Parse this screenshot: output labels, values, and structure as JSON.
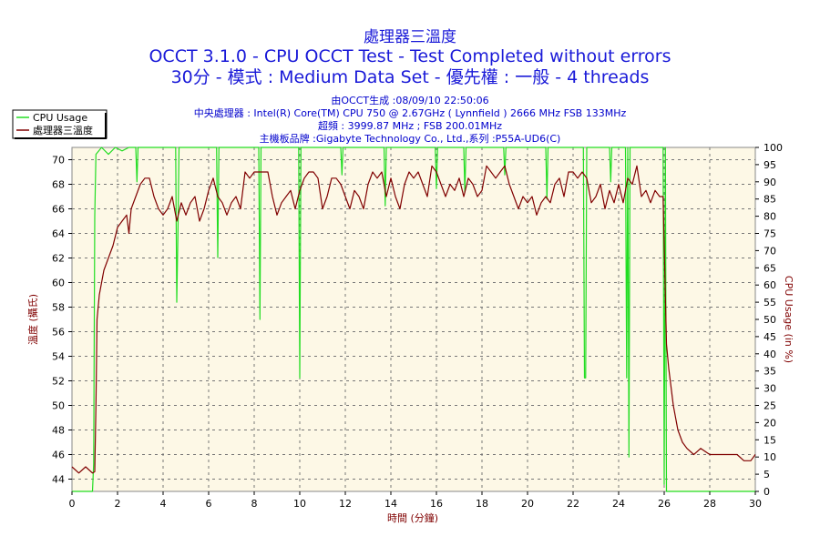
{
  "header": {
    "title_line1": "處理器三溫度",
    "title_line2": "OCCT 3.1.0 - CPU OCCT Test - Test Completed without errors",
    "title_line3": "30分 - 模式 : Medium Data Set - 優先權 : 一般 - 4 threads"
  },
  "info": {
    "generated": "由OCCT生成 :08/09/10 22:50:06",
    "cpu": "中央處理器 : Intel(R) Core(TM) CPU 750 @ 2.67GHz ( Lynnfield ) 2666 MHz FSB 133MHz",
    "overclock": "超頻 : 3999.87 MHz ; FSB 200.01MHz",
    "motherboard": "主機板品牌 :Gigabyte Technology Co., Ltd.,系列 :P55A-UD6(C)"
  },
  "colors": {
    "plot_bg": "#fdf8e6",
    "usage_line": "#22dd22",
    "temp_line": "#800000",
    "grid": "#777777",
    "title": "#1a1ad8",
    "info": "#0000cc"
  },
  "chart_data": {
    "type": "line",
    "xlabel": "時間 (分鐘)",
    "ylabel_left": "溫度 (攝氏)",
    "ylabel_right": "CPU Usage (in %)",
    "xlim": [
      0,
      30
    ],
    "ylim_left": [
      43,
      71
    ],
    "ylim_right": [
      0,
      100
    ],
    "x_ticks": [
      "0",
      "2",
      "4",
      "6",
      "8",
      "10",
      "12",
      "14",
      "16",
      "18",
      "20",
      "22",
      "24",
      "26",
      "28",
      "30"
    ],
    "left_ticks": [
      "44",
      "46",
      "48",
      "50",
      "52",
      "54",
      "56",
      "58",
      "60",
      "62",
      "64",
      "66",
      "68",
      "70"
    ],
    "right_ticks": [
      "0",
      "5",
      "10",
      "15",
      "20",
      "25",
      "30",
      "35",
      "40",
      "45",
      "50",
      "55",
      "60",
      "65",
      "70",
      "75",
      "80",
      "85",
      "90",
      "95",
      "100"
    ],
    "grid": true,
    "legend_position": "top-left",
    "series": [
      {
        "name": "CPU Usage",
        "axis": "right",
        "color": "#22dd22",
        "x": [
          0,
          0.9,
          0.95,
          1.0,
          1.05,
          1.3,
          1.6,
          1.9,
          2.2,
          2.5,
          2.8,
          2.85,
          2.9,
          3.2,
          4.0,
          4.55,
          4.6,
          4.65,
          4.7,
          4.75,
          5.5,
          6.35,
          6.4,
          6.45,
          6.5,
          7.0,
          7.5,
          8.2,
          8.25,
          8.3,
          8.35,
          8.4,
          9.0,
          9.6,
          9.95,
          10.0,
          10.05,
          10.1,
          11.0,
          11.8,
          11.85,
          11.9,
          12.5,
          13.0,
          13.7,
          13.75,
          13.8,
          14.5,
          15.0,
          15.5,
          15.95,
          16.0,
          16.05,
          16.5,
          17.2,
          17.25,
          17.3,
          18.0,
          18.5,
          18.95,
          19.0,
          19.05,
          20.0,
          20.8,
          20.85,
          20.9,
          21.5,
          22.2,
          22.45,
          22.5,
          22.55,
          22.6,
          23.0,
          23.6,
          23.65,
          23.7,
          24.3,
          24.35,
          24.4,
          24.45,
          24.5,
          24.55,
          24.6,
          25.0,
          25.5,
          25.95,
          26.0,
          26.05,
          26.1,
          27.0,
          28.0,
          29.0,
          30.0
        ],
        "y": [
          0,
          0,
          8,
          80,
          98,
          100,
          98,
          100,
          99,
          100,
          100,
          90,
          100,
          100,
          100,
          100,
          55,
          75,
          100,
          100,
          100,
          100,
          68,
          100,
          100,
          100,
          100,
          100,
          50,
          100,
          100,
          100,
          100,
          100,
          100,
          33,
          100,
          100,
          100,
          100,
          92,
          100,
          100,
          100,
          100,
          83,
          100,
          100,
          100,
          100,
          100,
          88,
          100,
          100,
          100,
          87,
          100,
          100,
          100,
          100,
          92,
          100,
          100,
          100,
          85,
          100,
          100,
          100,
          100,
          33,
          33,
          100,
          100,
          100,
          90,
          100,
          100,
          33,
          100,
          10,
          100,
          100,
          100,
          100,
          100,
          100,
          2,
          100,
          0,
          0,
          0,
          0,
          0
        ]
      },
      {
        "name": "處理器三溫度",
        "axis": "left",
        "color": "#800000",
        "x": [
          0,
          0.3,
          0.6,
          0.9,
          1.0,
          1.05,
          1.1,
          1.2,
          1.4,
          1.6,
          1.8,
          2.0,
          2.2,
          2.4,
          2.5,
          2.6,
          2.8,
          3.0,
          3.2,
          3.4,
          3.6,
          3.8,
          4.0,
          4.2,
          4.4,
          4.6,
          4.8,
          5.0,
          5.2,
          5.4,
          5.6,
          5.8,
          6.0,
          6.2,
          6.4,
          6.6,
          6.8,
          7.0,
          7.2,
          7.4,
          7.6,
          7.8,
          8.0,
          8.2,
          8.4,
          8.6,
          8.8,
          9.0,
          9.2,
          9.4,
          9.6,
          9.8,
          10.0,
          10.2,
          10.4,
          10.6,
          10.8,
          11.0,
          11.2,
          11.4,
          11.6,
          11.8,
          12.0,
          12.2,
          12.4,
          12.6,
          12.8,
          13.0,
          13.2,
          13.4,
          13.6,
          13.8,
          14.0,
          14.2,
          14.4,
          14.6,
          14.8,
          15.0,
          15.2,
          15.4,
          15.6,
          15.8,
          16.0,
          16.2,
          16.4,
          16.6,
          16.8,
          17.0,
          17.2,
          17.4,
          17.6,
          17.8,
          18.0,
          18.2,
          18.4,
          18.6,
          18.8,
          19.0,
          19.2,
          19.4,
          19.6,
          19.8,
          20.0,
          20.2,
          20.4,
          20.6,
          20.8,
          21.0,
          21.2,
          21.4,
          21.6,
          21.8,
          22.0,
          22.2,
          22.4,
          22.6,
          22.8,
          23.0,
          23.2,
          23.4,
          23.6,
          23.8,
          24.0,
          24.2,
          24.4,
          24.6,
          24.8,
          25.0,
          25.2,
          25.4,
          25.6,
          25.8,
          25.95,
          26.0,
          26.1,
          26.2,
          26.4,
          26.6,
          26.8,
          27.0,
          27.3,
          27.6,
          28.0,
          28.4,
          28.8,
          29.2,
          29.5,
          29.8,
          30.0
        ],
        "y": [
          45,
          44.5,
          45,
          44.5,
          44.6,
          50,
          57,
          59,
          61,
          62,
          63,
          64.5,
          65,
          65.5,
          64,
          66,
          67,
          68,
          68.5,
          68.5,
          67,
          66,
          65.5,
          66,
          67,
          65,
          66.5,
          65.5,
          66.5,
          67,
          65,
          66,
          67.5,
          68.5,
          67,
          66.5,
          65.5,
          66.5,
          67,
          66,
          69,
          68.5,
          69,
          69,
          69,
          69,
          67,
          65.5,
          66.5,
          67,
          67.5,
          66,
          67.5,
          68.5,
          69,
          69,
          68.5,
          66,
          67,
          68.5,
          68.5,
          68,
          67,
          66,
          67.5,
          67,
          66,
          68,
          69,
          68.5,
          69,
          67,
          68.5,
          67,
          66,
          68,
          69,
          68.5,
          69,
          68,
          67,
          69.5,
          69,
          68,
          67,
          68,
          67.5,
          68.5,
          67,
          68.5,
          68,
          67,
          67.5,
          69.5,
          69,
          68.5,
          69,
          69.5,
          68,
          67,
          66,
          67,
          66.5,
          67,
          65.5,
          66.5,
          67,
          66.5,
          68,
          68.5,
          67,
          69,
          69,
          68.5,
          69,
          68.5,
          66.5,
          67,
          68,
          66,
          67.5,
          66.5,
          68,
          66.5,
          68.5,
          68,
          69.5,
          67,
          67.5,
          66.5,
          67.5,
          67,
          67,
          63,
          55,
          53,
          50,
          48,
          47,
          46.5,
          46,
          46.5,
          46,
          46,
          46,
          46,
          45.5,
          45.5,
          46
        ],
        "comment": ""
      }
    ]
  }
}
